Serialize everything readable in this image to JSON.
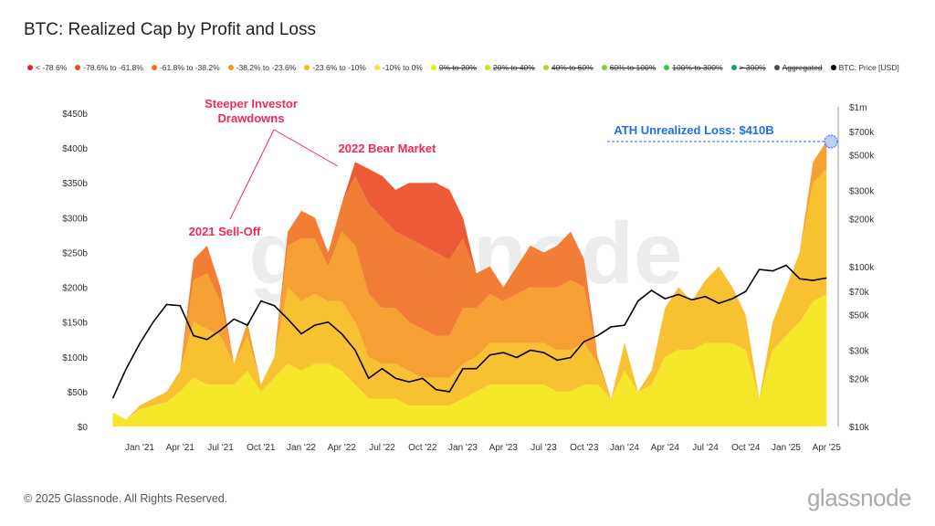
{
  "title": "BTC: Realized Cap by Profit and Loss",
  "footer": "© 2025 Glassnode. All Rights Reserved.",
  "brand": "glassnode",
  "watermark": "glassnode",
  "legend": [
    {
      "label": "< -78.6%",
      "color": "#e8222b",
      "active": true
    },
    {
      "label": "-78.6% to -61.8%",
      "color": "#ee4a2a",
      "active": true
    },
    {
      "label": "-61.8% to -38.2%",
      "color": "#f0701f",
      "active": true
    },
    {
      "label": "-38.2% to -23.6%",
      "color": "#f5951e",
      "active": true
    },
    {
      "label": "-23.6% to -10%",
      "color": "#f7b916",
      "active": true
    },
    {
      "label": "-10% to 0%",
      "color": "#f5e62a",
      "active": true
    },
    {
      "label": "0% to 20%",
      "color": "#e6ee1a",
      "active": false
    },
    {
      "label": "20% to 40%",
      "color": "#c6e61f",
      "active": false
    },
    {
      "label": "40% to 60%",
      "color": "#a6dc2c",
      "active": false
    },
    {
      "label": "60% to 100%",
      "color": "#7fd03c",
      "active": false
    },
    {
      "label": "100% to 300%",
      "color": "#3fc04c",
      "active": false
    },
    {
      "label": "> 300%",
      "color": "#10a860",
      "active": false
    },
    {
      "label": "Aggregated",
      "color": "#4a4f5a",
      "active": false
    },
    {
      "label": "BTC: Price [USD]",
      "color": "#000000",
      "active": true
    }
  ],
  "annotations": {
    "investor": "Steeper Investor",
    "drawdowns": "Drawdowns",
    "bear": "2022 Bear Market",
    "selloff": "2021 Sell-Off",
    "ath": "ATH Unrealized Loss: $410B"
  },
  "chart_data": {
    "type": "area",
    "title": "BTC: Realized Cap by Profit and Loss",
    "x": [
      "Nov '20",
      "Dec '20",
      "Jan '21",
      "Feb '21",
      "Mar '21",
      "Apr '21",
      "May '21",
      "Jun '21",
      "Jul '21",
      "Aug '21",
      "Sep '21",
      "Oct '21",
      "Nov '21",
      "Dec '21",
      "Jan '22",
      "Feb '22",
      "Mar '22",
      "Apr '22",
      "May '22",
      "Jun '22",
      "Jul '22",
      "Aug '22",
      "Sep '22",
      "Oct '22",
      "Nov '22",
      "Dec '22",
      "Jan '23",
      "Feb '23",
      "Mar '23",
      "Apr '23",
      "May '23",
      "Jun '23",
      "Jul '23",
      "Aug '23",
      "Sep '23",
      "Oct '23",
      "Nov '23",
      "Dec '23",
      "Jan '24",
      "Feb '24",
      "Mar '24",
      "Apr '24",
      "May '24",
      "Jun '24",
      "Jul '24",
      "Aug '24",
      "Sep '24",
      "Oct '24",
      "Nov '24",
      "Dec '24",
      "Jan '25",
      "Feb '25",
      "Mar '25",
      "Apr '25"
    ],
    "x_ticks": [
      "Jan '21",
      "Apr '21",
      "Jul '21",
      "Oct '21",
      "Jan '22",
      "Apr '22",
      "Jul '22",
      "Oct '22",
      "Jan '23",
      "Apr '23",
      "Jul '23",
      "Oct '23",
      "Jan '24",
      "Apr '24",
      "Jul '24",
      "Oct '24",
      "Jan '25",
      "Apr '25"
    ],
    "y_left_ticks": [
      "$0",
      "$50b",
      "$100b",
      "$150b",
      "$200b",
      "$250b",
      "$300b",
      "$350b",
      "$400b",
      "$450b"
    ],
    "y_left_range": [
      0,
      450
    ],
    "y_right_ticks": [
      [
        "$10k",
        10
      ],
      [
        "$20k",
        20
      ],
      [
        "$30k",
        30
      ],
      [
        "$50k",
        50
      ],
      [
        "$70k",
        70
      ],
      [
        "$100k",
        100
      ],
      [
        "$200k",
        200
      ],
      [
        "$300k",
        300
      ],
      [
        "$500k",
        500
      ],
      [
        "$700k",
        700
      ],
      [
        "$1m",
        1000
      ]
    ],
    "y_right_scale": "log",
    "series": [
      {
        "name": "-10% to 0%",
        "color": "#f5e62a",
        "values": [
          20,
          10,
          25,
          30,
          35,
          50,
          70,
          60,
          60,
          60,
          80,
          50,
          70,
          90,
          80,
          90,
          90,
          80,
          60,
          40,
          40,
          40,
          30,
          30,
          30,
          30,
          40,
          50,
          60,
          60,
          60,
          60,
          60,
          50,
          50,
          60,
          60,
          40,
          80,
          50,
          60,
          100,
          110,
          110,
          120,
          120,
          120,
          110,
          40,
          110,
          130,
          150,
          180,
          190
        ]
      },
      {
        "name": "-23.6% to -10%",
        "color": "#f7c132",
        "values": [
          0,
          0,
          5,
          10,
          15,
          30,
          80,
          80,
          70,
          30,
          50,
          10,
          30,
          110,
          100,
          100,
          90,
          100,
          90,
          60,
          50,
          50,
          50,
          40,
          40,
          40,
          50,
          50,
          60,
          60,
          60,
          60,
          60,
          60,
          60,
          60,
          30,
          0,
          40,
          0,
          20,
          70,
          90,
          70,
          90,
          110,
          80,
          50,
          0,
          40,
          70,
          100,
          170,
          180
        ]
      },
      {
        "name": "-38.2% to -23.6%",
        "color": "#f5a033",
        "values": [
          0,
          0,
          0,
          0,
          0,
          0,
          60,
          80,
          50,
          0,
          20,
          0,
          0,
          60,
          90,
          80,
          50,
          100,
          110,
          90,
          80,
          80,
          70,
          70,
          60,
          60,
          80,
          70,
          70,
          60,
          70,
          80,
          80,
          90,
          100,
          80,
          10,
          0,
          0,
          0,
          0,
          0,
          0,
          0,
          0,
          0,
          0,
          0,
          0,
          0,
          0,
          0,
          30,
          40
        ]
      },
      {
        "name": "-61.8% to -38.2%",
        "color": "#f27d35",
        "values": [
          0,
          0,
          0,
          0,
          0,
          0,
          30,
          40,
          20,
          0,
          0,
          0,
          0,
          20,
          40,
          30,
          20,
          40,
          100,
          130,
          130,
          110,
          120,
          120,
          120,
          110,
          100,
          50,
          40,
          20,
          40,
          60,
          50,
          60,
          70,
          40,
          0,
          0,
          0,
          0,
          0,
          0,
          0,
          0,
          0,
          0,
          0,
          0,
          0,
          0,
          0,
          0,
          0,
          0
        ]
      },
      {
        "name": "-78.6% to -61.8%",
        "color": "#ec5a38",
        "values": [
          0,
          0,
          0,
          0,
          0,
          0,
          0,
          0,
          0,
          0,
          0,
          0,
          0,
          0,
          0,
          0,
          0,
          0,
          20,
          50,
          60,
          60,
          80,
          90,
          100,
          100,
          30,
          0,
          0,
          0,
          0,
          0,
          0,
          0,
          0,
          0,
          0,
          0,
          0,
          0,
          0,
          0,
          0,
          0,
          0,
          0,
          0,
          0,
          0,
          0,
          0,
          0,
          0,
          0
        ]
      }
    ],
    "price": {
      "name": "BTC: Price [USD]",
      "unit": "k USD",
      "values": [
        15,
        23,
        33,
        45,
        58,
        57,
        37,
        35,
        40,
        47,
        43,
        61,
        57,
        47,
        38,
        43,
        45,
        38,
        30,
        20,
        23,
        20,
        19,
        20,
        17,
        16.5,
        23,
        23,
        28,
        29,
        27,
        30,
        29,
        26,
        27,
        34,
        37,
        42,
        43,
        61,
        71,
        63,
        67,
        62,
        65,
        59,
        63,
        70,
        96,
        94,
        102,
        84,
        82,
        85
      ]
    }
  }
}
